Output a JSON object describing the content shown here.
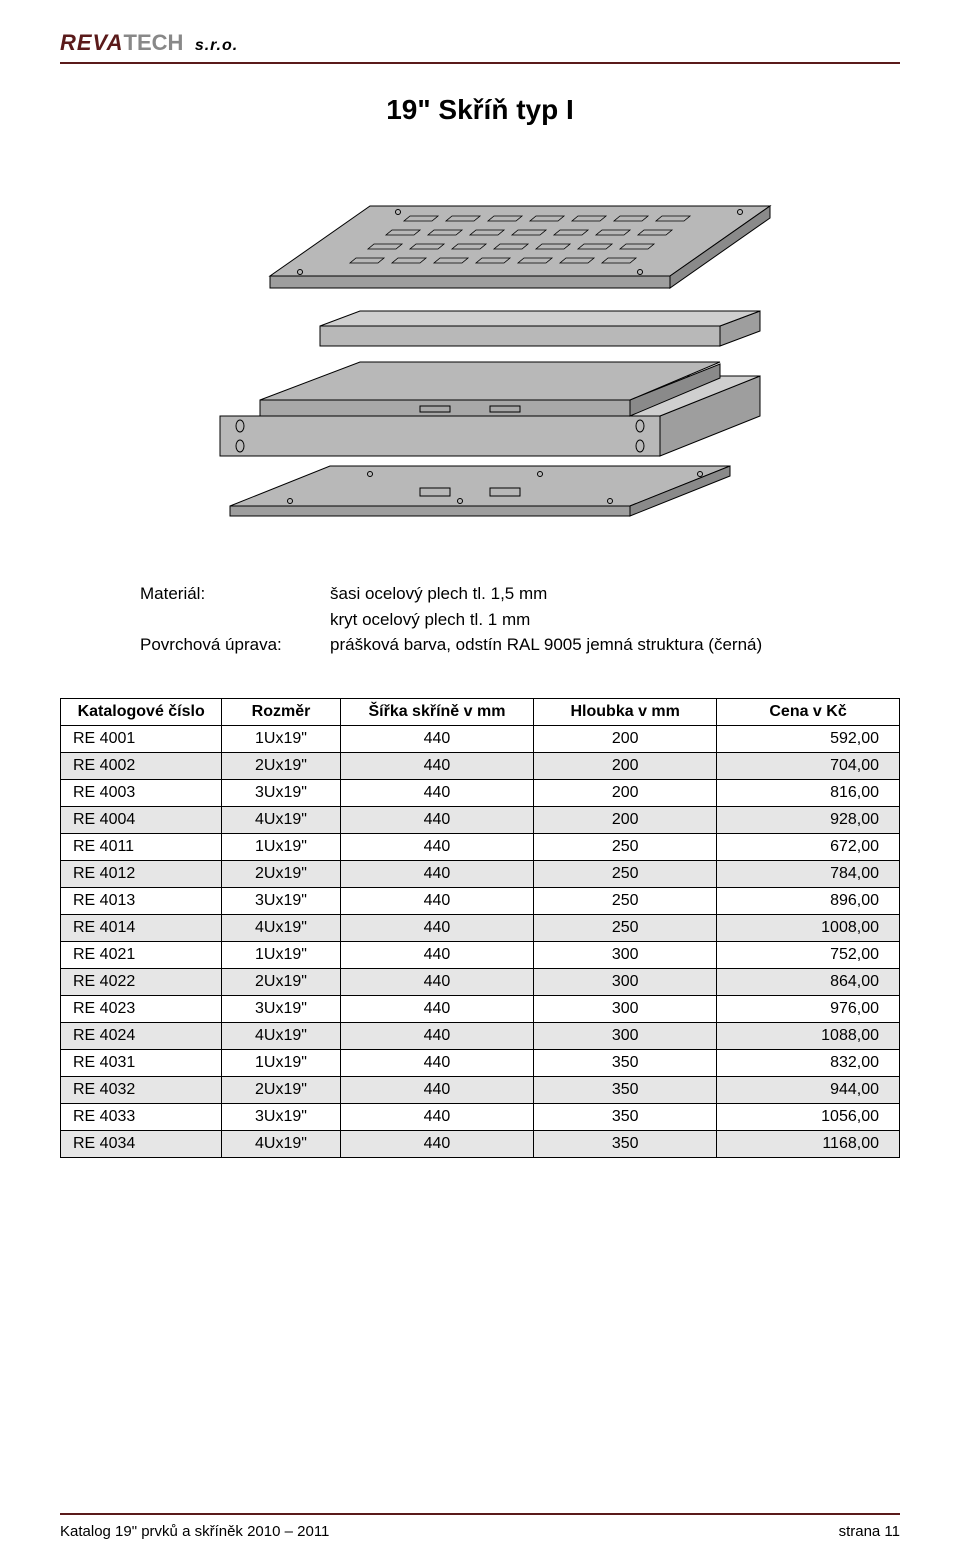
{
  "logo": {
    "brand1": "REVA",
    "brand2": "TECH",
    "suffix": " s.r.o."
  },
  "title": "19\" Skříň typ I",
  "diagram": {
    "fill": "#b8b8b8",
    "stroke": "#000000",
    "stroke_width": 1
  },
  "spec": {
    "rows": [
      {
        "label": "Materiál:",
        "value": "šasi ocelový plech tl. 1,5 mm"
      },
      {
        "label": "",
        "value": "kryt ocelový plech tl. 1 mm"
      },
      {
        "label": "Povrchová úprava:",
        "value": "prášková barva, odstín RAL 9005 jemná struktura (černá)"
      }
    ]
  },
  "table": {
    "headers": [
      "Katalogové číslo",
      "Rozměr",
      "Šířka skříně v mm",
      "Hloubka v mm",
      "Cena v Kč"
    ],
    "shaded_color": "#e6e6e6",
    "rows": [
      {
        "cells": [
          "RE 4001",
          "1Ux19\"",
          "440",
          "200",
          "592,00"
        ],
        "shaded": false
      },
      {
        "cells": [
          "RE 4002",
          "2Ux19\"",
          "440",
          "200",
          "704,00"
        ],
        "shaded": true
      },
      {
        "cells": [
          "RE 4003",
          "3Ux19\"",
          "440",
          "200",
          "816,00"
        ],
        "shaded": false
      },
      {
        "cells": [
          "RE 4004",
          "4Ux19\"",
          "440",
          "200",
          "928,00"
        ],
        "shaded": true
      },
      {
        "cells": [
          "RE 4011",
          "1Ux19\"",
          "440",
          "250",
          "672,00"
        ],
        "shaded": false
      },
      {
        "cells": [
          "RE 4012",
          "2Ux19\"",
          "440",
          "250",
          "784,00"
        ],
        "shaded": true
      },
      {
        "cells": [
          "RE 4013",
          "3Ux19\"",
          "440",
          "250",
          "896,00"
        ],
        "shaded": false
      },
      {
        "cells": [
          "RE 4014",
          "4Ux19\"",
          "440",
          "250",
          "1008,00"
        ],
        "shaded": true
      },
      {
        "cells": [
          "RE 4021",
          "1Ux19\"",
          "440",
          "300",
          "752,00"
        ],
        "shaded": false
      },
      {
        "cells": [
          "RE 4022",
          "2Ux19\"",
          "440",
          "300",
          "864,00"
        ],
        "shaded": true
      },
      {
        "cells": [
          "RE 4023",
          "3Ux19\"",
          "440",
          "300",
          "976,00"
        ],
        "shaded": false
      },
      {
        "cells": [
          "RE 4024",
          "4Ux19\"",
          "440",
          "300",
          "1088,00"
        ],
        "shaded": true
      },
      {
        "cells": [
          "RE 4031",
          "1Ux19\"",
          "440",
          "350",
          "832,00"
        ],
        "shaded": false
      },
      {
        "cells": [
          "RE 4032",
          "2Ux19\"",
          "440",
          "350",
          "944,00"
        ],
        "shaded": true
      },
      {
        "cells": [
          "RE 4033",
          "3Ux19\"",
          "440",
          "350",
          "1056,00"
        ],
        "shaded": false
      },
      {
        "cells": [
          "RE 4034",
          "4Ux19\"",
          "440",
          "350",
          "1168,00"
        ],
        "shaded": true
      }
    ]
  },
  "footer": {
    "left": "Katalog 19\" prvků a skříněk 2010 – 2011",
    "right": "strana 11"
  }
}
